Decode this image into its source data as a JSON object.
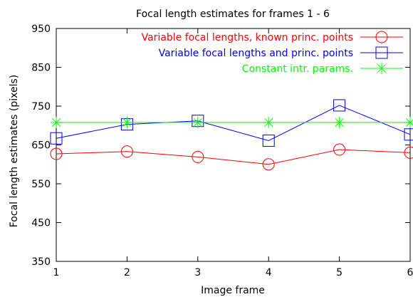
{
  "chart_data": {
    "type": "line",
    "title": "Focal length estimates for frames 1 - 6",
    "xlabel": "Image frame",
    "ylabel": "Focal length estimates (pixels)",
    "x": [
      1,
      2,
      3,
      4,
      5,
      6
    ],
    "xlim": [
      1,
      6
    ],
    "ylim": [
      350,
      950
    ],
    "xticks": [
      "1",
      "2",
      "3",
      "4",
      "5",
      "6"
    ],
    "yticks": [
      "350",
      "450",
      "550",
      "650",
      "750",
      "850",
      "950"
    ],
    "grid": false,
    "legend_position": "top-right",
    "series": [
      {
        "name": "Variable focal lengths, known princ. points",
        "color": "#ff0000",
        "marker": "circle",
        "values": [
          627,
          633,
          619,
          600,
          638,
          630
        ]
      },
      {
        "name": "Variable focal lengths and princ. points",
        "color": "#0000ff",
        "marker": "square",
        "values": [
          667,
          703,
          712,
          661,
          752,
          677
        ]
      },
      {
        "name": "Constant intr. params.",
        "color": "#00ff00",
        "marker": "asterisk",
        "values": [
          708,
          708,
          708,
          708,
          708,
          708
        ]
      }
    ]
  }
}
